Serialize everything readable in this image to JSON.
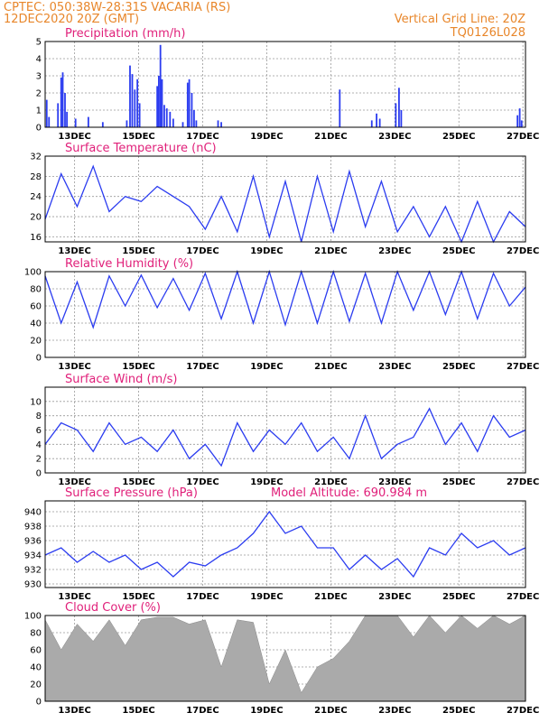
{
  "header": {
    "line1_left": "CPTEC:   050:38W-28:31S   VACARIA (RS)",
    "line2_left": "12DEC2020  20Z (GMT)",
    "line2_right": "Vertical Grid Line: 20Z",
    "line3_right": "TQ0126L028"
  },
  "colors": {
    "header": "#e8862a",
    "panel_title": "#e0207a",
    "series": "#2b3cf0",
    "cloud": "#aaaaaa",
    "grid": "#999999"
  },
  "chart_data": [
    {
      "type": "bar",
      "title": "Precipitation (mm/h)",
      "ylim": [
        0,
        5
      ],
      "yticks": [
        0,
        1,
        2,
        3,
        4,
        5
      ],
      "xtick_labels": [
        "13DEC",
        "15DEC",
        "17DEC",
        "19DEC",
        "21DEC",
        "23DEC",
        "25DEC",
        "27DEC"
      ],
      "x_range_days": [
        0,
        15
      ],
      "events": [
        {
          "day": 0.05,
          "value": 1.6
        },
        {
          "day": 0.12,
          "value": 0.6
        },
        {
          "day": 0.4,
          "value": 1.4
        },
        {
          "day": 0.5,
          "value": 2.9
        },
        {
          "day": 0.55,
          "value": 3.2
        },
        {
          "day": 0.62,
          "value": 2.0
        },
        {
          "day": 0.68,
          "value": 0.9
        },
        {
          "day": 0.95,
          "value": 0.5
        },
        {
          "day": 1.35,
          "value": 0.6
        },
        {
          "day": 1.8,
          "value": 0.3
        },
        {
          "day": 2.55,
          "value": 0.4
        },
        {
          "day": 2.65,
          "value": 3.6
        },
        {
          "day": 2.72,
          "value": 3.1
        },
        {
          "day": 2.8,
          "value": 2.2
        },
        {
          "day": 2.88,
          "value": 2.8
        },
        {
          "day": 2.95,
          "value": 1.4
        },
        {
          "day": 3.5,
          "value": 2.4
        },
        {
          "day": 3.55,
          "value": 3.0
        },
        {
          "day": 3.6,
          "value": 4.8
        },
        {
          "day": 3.65,
          "value": 2.8
        },
        {
          "day": 3.72,
          "value": 1.3
        },
        {
          "day": 3.8,
          "value": 1.1
        },
        {
          "day": 3.9,
          "value": 0.9
        },
        {
          "day": 4.0,
          "value": 0.5
        },
        {
          "day": 4.3,
          "value": 0.3
        },
        {
          "day": 4.45,
          "value": 2.6
        },
        {
          "day": 4.5,
          "value": 2.8
        },
        {
          "day": 4.58,
          "value": 2.0
        },
        {
          "day": 4.65,
          "value": 1.0
        },
        {
          "day": 4.72,
          "value": 0.4
        },
        {
          "day": 5.4,
          "value": 0.4
        },
        {
          "day": 5.5,
          "value": 0.3
        },
        {
          "day": 9.2,
          "value": 2.2
        },
        {
          "day": 10.2,
          "value": 0.4
        },
        {
          "day": 10.35,
          "value": 0.8
        },
        {
          "day": 10.45,
          "value": 0.5
        },
        {
          "day": 10.95,
          "value": 1.4
        },
        {
          "day": 11.05,
          "value": 2.3
        },
        {
          "day": 11.12,
          "value": 1.0
        },
        {
          "day": 14.75,
          "value": 0.7
        },
        {
          "day": 14.82,
          "value": 1.1
        },
        {
          "day": 14.88,
          "value": 0.4
        }
      ]
    },
    {
      "type": "line",
      "title": "Surface Temperature (nC)",
      "ylim": [
        15,
        32
      ],
      "yticks": [
        16,
        20,
        24,
        28,
        32
      ],
      "x_range_days": [
        0,
        15
      ],
      "x_days": [
        0,
        0.5,
        1,
        1.5,
        2,
        2.5,
        3,
        3.5,
        4,
        4.5,
        5,
        5.5,
        6,
        6.5,
        7,
        7.5,
        8,
        8.5,
        9,
        9.5,
        10,
        10.5,
        11,
        11.5,
        12,
        12.5,
        13,
        13.5,
        14,
        14.5,
        15
      ],
      "values": [
        19.5,
        28.5,
        22,
        30,
        21,
        24,
        23,
        26,
        24,
        22,
        17.5,
        24,
        17,
        28,
        16,
        27,
        15,
        28,
        17,
        29,
        18,
        27,
        17,
        22,
        16,
        22,
        15,
        23,
        15,
        21,
        18
      ]
    },
    {
      "type": "line",
      "title": "Relative Humidity (%)",
      "ylim": [
        0,
        100
      ],
      "yticks": [
        0,
        20,
        40,
        60,
        80,
        100
      ],
      "x_range_days": [
        0,
        15
      ],
      "x_days": [
        0,
        0.5,
        1,
        1.5,
        2,
        2.5,
        3,
        3.5,
        4,
        4.5,
        5,
        5.5,
        6,
        6.5,
        7,
        7.5,
        8,
        8.5,
        9,
        9.5,
        10,
        10.5,
        11,
        11.5,
        12,
        12.5,
        13,
        13.5,
        14,
        14.5,
        15
      ],
      "values": [
        95,
        40,
        88,
        35,
        95,
        60,
        96,
        58,
        92,
        55,
        98,
        45,
        100,
        40,
        100,
        38,
        100,
        40,
        100,
        42,
        98,
        40,
        100,
        55,
        100,
        50,
        100,
        45,
        98,
        60,
        82
      ]
    },
    {
      "type": "line",
      "title": "Surface Wind (m/s)",
      "ylim": [
        0,
        12
      ],
      "yticks": [
        0,
        2,
        4,
        6,
        8,
        10
      ],
      "x_range_days": [
        0,
        15
      ],
      "x_days": [
        0,
        0.5,
        1,
        1.5,
        2,
        2.5,
        3,
        3.5,
        4,
        4.5,
        5,
        5.5,
        6,
        6.5,
        7,
        7.5,
        8,
        8.5,
        9,
        9.5,
        10,
        10.5,
        11,
        11.5,
        12,
        12.5,
        13,
        13.5,
        14,
        14.5,
        15
      ],
      "values": [
        4,
        7,
        6,
        3,
        7,
        4,
        5,
        3,
        6,
        2,
        4,
        1,
        7,
        3,
        6,
        4,
        7,
        3,
        5,
        2,
        8,
        2,
        4,
        5,
        9,
        4,
        7,
        3,
        8,
        5,
        6
      ]
    },
    {
      "type": "line",
      "title": "Surface Pressure (hPa)",
      "annotation": "Model Altitude: 690.984  m",
      "ylim": [
        929.5,
        941.5
      ],
      "yticks": [
        930,
        932,
        934,
        936,
        938,
        940
      ],
      "x_range_days": [
        0,
        15
      ],
      "x_days": [
        0,
        0.5,
        1,
        1.5,
        2,
        2.5,
        3,
        3.5,
        4,
        4.5,
        5,
        5.5,
        6,
        6.5,
        7,
        7.5,
        8,
        8.5,
        9,
        9.5,
        10,
        10.5,
        11,
        11.5,
        12,
        12.5,
        13,
        13.5,
        14,
        14.5,
        15
      ],
      "values": [
        934,
        935,
        933,
        934.5,
        933,
        934,
        932,
        933,
        931,
        933,
        932.5,
        934,
        935,
        937,
        940,
        937,
        938,
        935,
        935,
        932,
        934,
        932,
        933.5,
        931,
        935,
        934,
        937,
        935,
        936,
        934,
        935
      ]
    },
    {
      "type": "area",
      "title": "Cloud Cover (%)",
      "ylim": [
        0,
        100
      ],
      "yticks": [
        0,
        20,
        40,
        60,
        80,
        100
      ],
      "x_range_days": [
        0,
        15
      ],
      "x_days": [
        0,
        0.5,
        1,
        1.5,
        2,
        2.5,
        3,
        3.5,
        4,
        4.5,
        5,
        5.5,
        6,
        6.5,
        7,
        7.5,
        8,
        8.5,
        9,
        9.5,
        10,
        10.5,
        11,
        11.5,
        12,
        12.5,
        13,
        13.5,
        14,
        14.5,
        15
      ],
      "values": [
        95,
        60,
        90,
        70,
        95,
        65,
        95,
        98,
        98,
        90,
        95,
        40,
        95,
        92,
        20,
        60,
        10,
        40,
        50,
        70,
        100,
        100,
        100,
        75,
        100,
        80,
        100,
        85,
        100,
        90,
        100
      ]
    }
  ]
}
